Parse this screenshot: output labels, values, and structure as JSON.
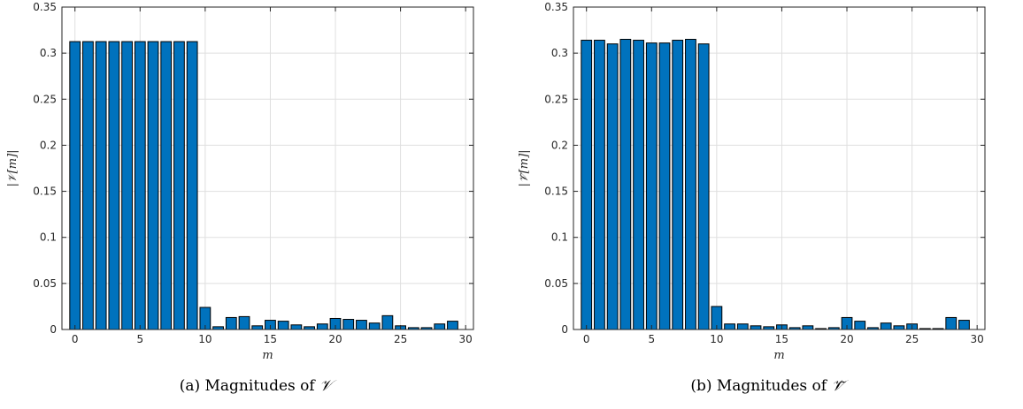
{
  "chart_data": [
    {
      "type": "bar",
      "ylabel": "|𝒱[m]|",
      "xlabel": "m",
      "ylim": [
        0,
        0.35
      ],
      "xlim": [
        -1,
        30.6
      ],
      "yticks": [
        "0",
        "0.05",
        "0.1",
        "0.15",
        "0.2",
        "0.25",
        "0.3",
        "0.35"
      ],
      "xticks": [
        "0",
        "5",
        "10",
        "15",
        "20",
        "25",
        "30"
      ],
      "grid": true,
      "bar_color": "#0072BD",
      "x": [
        0,
        1,
        2,
        3,
        4,
        5,
        6,
        7,
        8,
        9,
        10,
        11,
        12,
        13,
        14,
        15,
        16,
        17,
        18,
        19,
        20,
        21,
        22,
        23,
        24,
        25,
        26,
        27,
        28,
        29
      ],
      "values": [
        0.3125,
        0.3125,
        0.3125,
        0.3125,
        0.3125,
        0.3125,
        0.3125,
        0.3125,
        0.3125,
        0.3125,
        0.024,
        0.003,
        0.013,
        0.014,
        0.004,
        0.01,
        0.009,
        0.005,
        0.003,
        0.006,
        0.012,
        0.011,
        0.01,
        0.007,
        0.015,
        0.004,
        0.002,
        0.002,
        0.006,
        0.009
      ],
      "caption_prefix": "(a) Magnitudes of ",
      "caption_symbol": "𝒱"
    },
    {
      "type": "bar",
      "ylabel": "|𝒱̃[m]|",
      "xlabel": "m",
      "ylim": [
        0,
        0.35
      ],
      "xlim": [
        -1,
        30.6
      ],
      "yticks": [
        "0",
        "0.05",
        "0.1",
        "0.15",
        "0.2",
        "0.25",
        "0.3",
        "0.35"
      ],
      "xticks": [
        "0",
        "5",
        "10",
        "15",
        "20",
        "25",
        "30"
      ],
      "grid": true,
      "bar_color": "#0072BD",
      "x": [
        0,
        1,
        2,
        3,
        4,
        5,
        6,
        7,
        8,
        9,
        10,
        11,
        12,
        13,
        14,
        15,
        16,
        17,
        18,
        19,
        20,
        21,
        22,
        23,
        24,
        25,
        26,
        27,
        28,
        29
      ],
      "values": [
        0.314,
        0.314,
        0.31,
        0.315,
        0.314,
        0.311,
        0.311,
        0.314,
        0.315,
        0.31,
        0.025,
        0.006,
        0.006,
        0.004,
        0.003,
        0.005,
        0.002,
        0.004,
        0.001,
        0.002,
        0.013,
        0.009,
        0.002,
        0.007,
        0.004,
        0.006,
        0.001,
        0.001,
        0.013,
        0.01
      ],
      "caption_prefix": "(b) Magnitudes of ",
      "caption_symbol": "𝒱̃"
    }
  ]
}
